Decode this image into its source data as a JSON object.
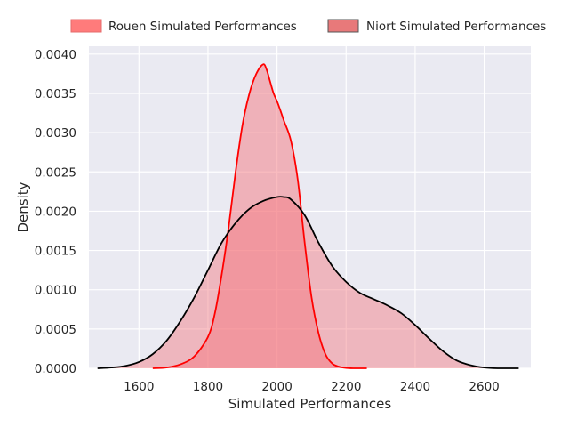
{
  "chart_data": {
    "type": "area",
    "title": "",
    "xlabel": "Simulated Performances",
    "ylabel": "Density",
    "xlim": [
      1455,
      2735
    ],
    "ylim": [
      0,
      0.0041
    ],
    "grid": true,
    "legend_position": "top",
    "x_ticks": [
      1600,
      1800,
      2000,
      2200,
      2400,
      2600
    ],
    "x_tick_labels": [
      "1600",
      "1800",
      "2000",
      "2200",
      "2400",
      "2600"
    ],
    "y_ticks": [
      0,
      0.0005,
      0.001,
      0.0015,
      0.002,
      0.0025,
      0.003,
      0.0035,
      0.004
    ],
    "y_tick_labels": [
      "0.0000",
      "0.0005",
      "0.0010",
      "0.0015",
      "0.0020",
      "0.0025",
      "0.0030",
      "0.0035",
      "0.0040"
    ],
    "series": [
      {
        "name": "Rouen Simulated Performances",
        "fill_color": "#f4777f",
        "line_color": "#ff0000",
        "legend_fill": "#ff7b7b",
        "legend_edge": "#e56b6b",
        "x": [
          1640,
          1680,
          1720,
          1760,
          1800,
          1820,
          1840,
          1860,
          1880,
          1900,
          1920,
          1940,
          1960,
          1970,
          1980,
          1990,
          2000,
          2010,
          2020,
          2040,
          2060,
          2080,
          2100,
          2120,
          2140,
          2160,
          2180,
          2200,
          2220,
          2240,
          2260
        ],
        "values": [
          0.0,
          1e-05,
          5e-05,
          0.00015,
          0.0004,
          0.0007,
          0.0012,
          0.0018,
          0.0025,
          0.0031,
          0.0035,
          0.00375,
          0.00387,
          0.0038,
          0.00365,
          0.0035,
          0.0034,
          0.00328,
          0.00315,
          0.0029,
          0.0024,
          0.0016,
          0.0009,
          0.00045,
          0.00018,
          6e-05,
          2e-05,
          5e-06,
          0.0,
          0.0,
          0.0
        ]
      },
      {
        "name": "Niort Simulated Performances",
        "fill_color": "#f4777f",
        "line_color": "#000000",
        "legend_fill": "#e8797a",
        "legend_edge": "#555555",
        "x": [
          1480,
          1520,
          1560,
          1600,
          1640,
          1680,
          1720,
          1760,
          1800,
          1840,
          1880,
          1920,
          1960,
          2000,
          2020,
          2040,
          2080,
          2120,
          2160,
          2200,
          2240,
          2280,
          2320,
          2360,
          2400,
          2440,
          2480,
          2520,
          2560,
          2600,
          2640,
          2680,
          2700
        ],
        "values": [
          0.0,
          1e-05,
          3e-05,
          8e-05,
          0.00018,
          0.00035,
          0.0006,
          0.0009,
          0.00125,
          0.0016,
          0.00185,
          0.00203,
          0.00213,
          0.00218,
          0.00218,
          0.00215,
          0.00195,
          0.0016,
          0.0013,
          0.0011,
          0.00096,
          0.00088,
          0.0008,
          0.0007,
          0.00055,
          0.00038,
          0.00022,
          0.0001,
          4e-05,
          1e-05,
          0.0,
          0.0,
          0.0
        ]
      }
    ]
  }
}
